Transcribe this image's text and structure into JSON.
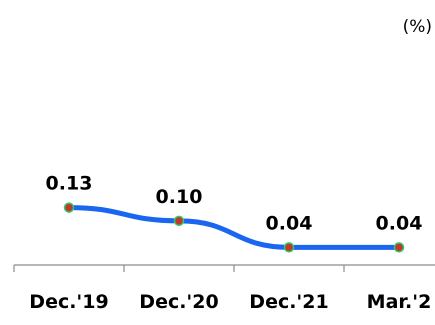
{
  "chart_data": {
    "type": "line",
    "title": "",
    "unit": "(%)",
    "xlabel": "",
    "ylabel": "",
    "categories": [
      "Dec.'19",
      "Dec.'20",
      "Dec.'21",
      "Mar.'2"
    ],
    "series": [
      {
        "values": [
          0.13,
          0.1,
          0.04,
          0.04
        ],
        "labels": [
          "0.13",
          "0.10",
          "0.04",
          "0.04"
        ],
        "line_color": "#1a66f0",
        "marker_color": "#c0392b",
        "marker_edge_color": "#2ecc71"
      }
    ],
    "ylim": [
      0,
      0.6
    ],
    "grid": false,
    "legend": "none",
    "axis_color": "#8c8c8c"
  }
}
